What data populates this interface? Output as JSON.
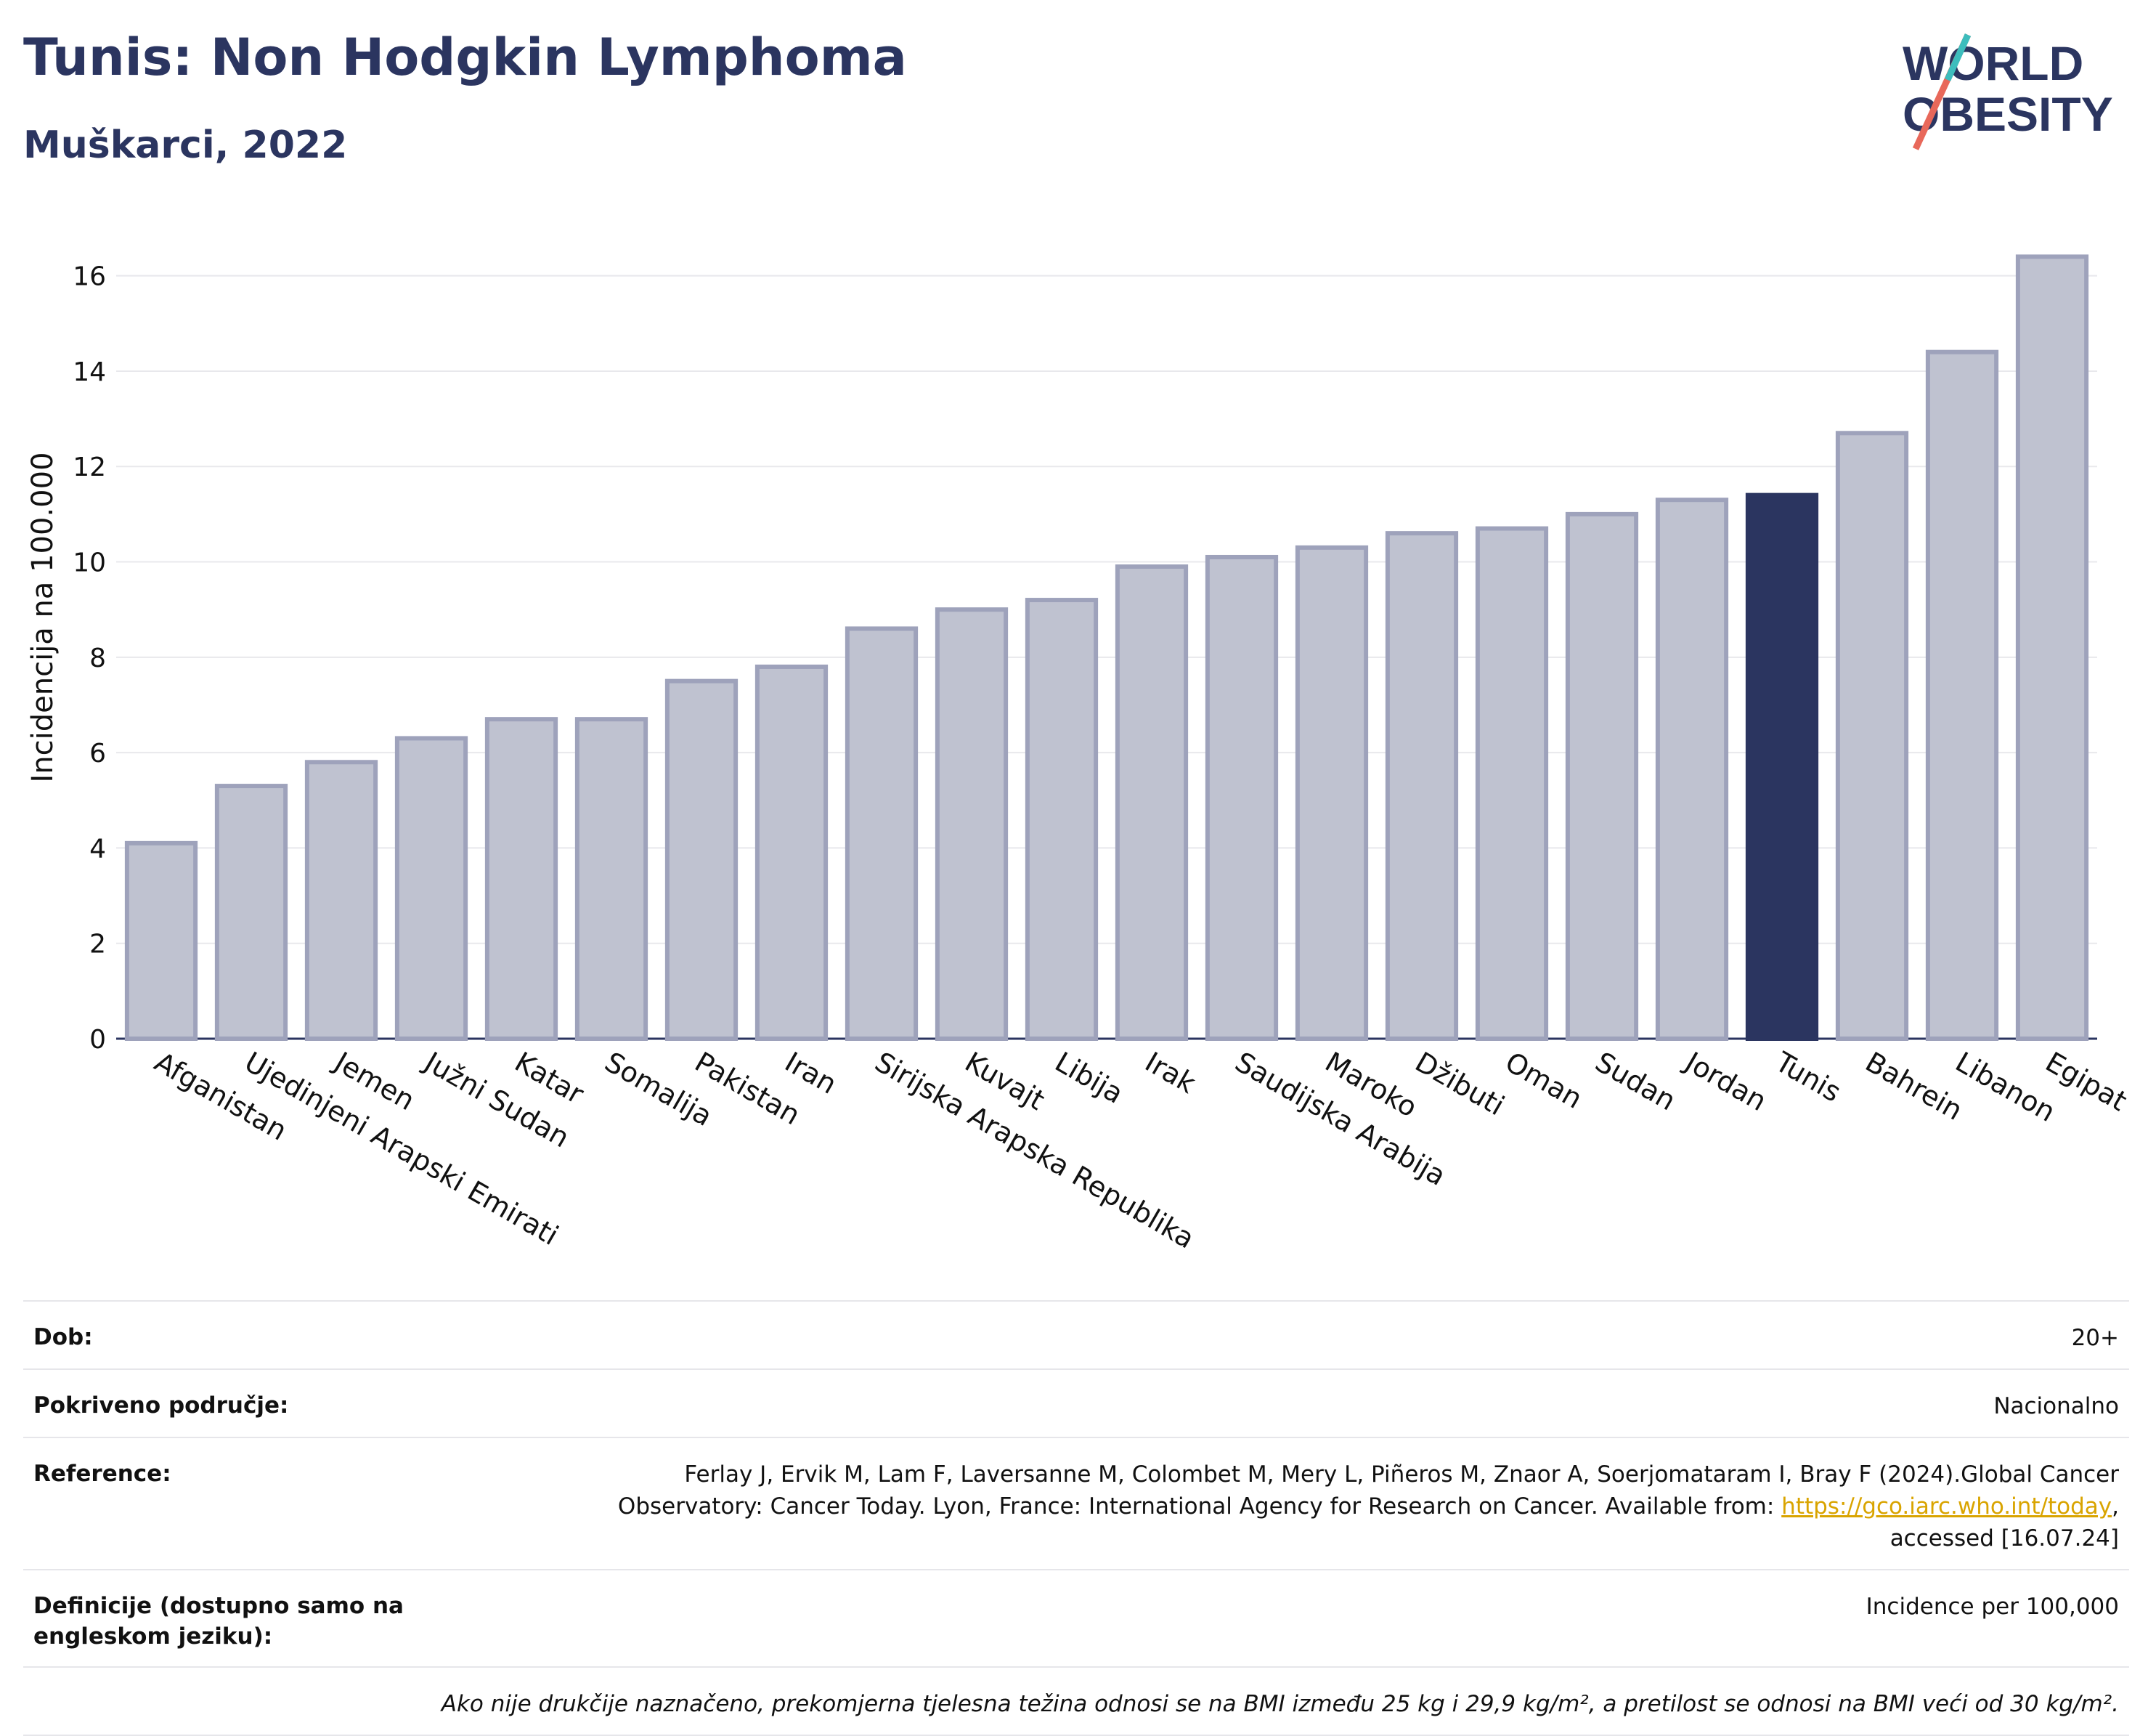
{
  "header": {
    "title": "Tunis: Non Hodgkin Lymphoma",
    "subtitle": "Muškarci, 2022",
    "logo_line1": "WORLD",
    "logo_line2": "OBESITY"
  },
  "colors": {
    "bar_default": "#bfc2d0",
    "bar_border": "#9ea2bb",
    "bar_highlight": "#2b3560",
    "grid": "#e8e8ec",
    "text": "#2b3560"
  },
  "chart_data": {
    "type": "bar",
    "ylabel": "Incidencija na 100.000",
    "ylim": [
      0,
      17
    ],
    "yticks": [
      0,
      2,
      4,
      6,
      8,
      10,
      12,
      14,
      16
    ],
    "grid": true,
    "highlight": "Tunis",
    "categories": [
      "Afganistan",
      "Ujedinjeni Arapski Emirati",
      "Jemen",
      "Južni Sudan",
      "Katar",
      "Somalija",
      "Pakistan",
      "Iran",
      "Sirijska Arapska Republika",
      "Kuvajt",
      "Libija",
      "Irak",
      "Saudijska Arabija",
      "Maroko",
      "Džibuti",
      "Oman",
      "Sudan",
      "Jordan",
      "Tunis",
      "Bahrein",
      "Libanon",
      "Egipat"
    ],
    "values": [
      4.1,
      5.3,
      5.8,
      6.3,
      6.7,
      6.7,
      7.5,
      7.8,
      8.6,
      9.0,
      9.2,
      9.9,
      10.1,
      10.3,
      10.6,
      10.7,
      11.0,
      11.3,
      11.4,
      12.7,
      14.4,
      16.4
    ]
  },
  "meta": {
    "age_label": "Dob:",
    "age_value": "20+",
    "coverage_label": "Pokriveno područje:",
    "coverage_value": "Nacionalno",
    "reference_label": "Reference:",
    "reference_line1": "Ferlay J, Ervik M, Lam F, Laversanne M, Colombet M, Mery L, Piñeros M, Znaor A, Soerjomataram I, Bray F (2024).Global Cancer",
    "reference_line2_pre": "Observatory: Cancer Today. Lyon, France: International Agency for Research on Cancer. Available from: ",
    "reference_link": "https://gco.iarc.who.int/today",
    "reference_line2_post": ",",
    "reference_line3": "accessed [16.07.24]",
    "definitions_label": "Definicije (dostupno samo na engleskom jeziku):",
    "definitions_value": "Incidence per 100,000",
    "note": "Ako nije drukčije naznačeno, prekomjerna tjelesna težina odnosi se na BMI između 25 kg i 29,9 kg/m², a pretilost se odnosi na BMI veći od 30 kg/m²."
  }
}
